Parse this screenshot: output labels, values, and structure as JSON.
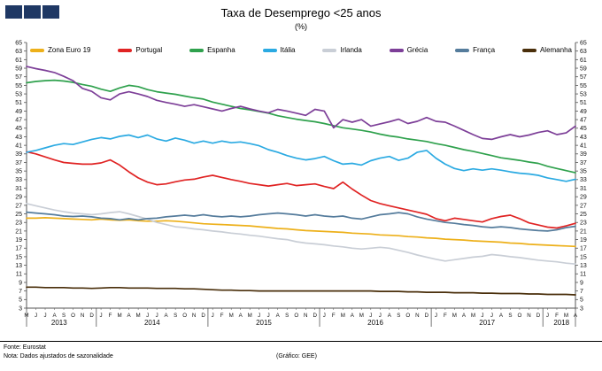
{
  "header": {
    "title": "Taxa de Desemprego <25 anos",
    "subtitle": "(%)"
  },
  "logo": {
    "color": "#1F3864",
    "squares": 3
  },
  "footer": {
    "source": "Fonte: Eurostat",
    "note": "Nota: Dados ajustados de sazonalidade",
    "credit": "(Gráfico: GEE)"
  },
  "chart_data": {
    "type": "line",
    "title": "Taxa de Desemprego <25 anos",
    "xlabel": "",
    "ylabel": "%",
    "ylim": [
      3,
      65
    ],
    "ytick_step": 2,
    "grid": false,
    "legend_position": "top",
    "x_labels": [
      "M",
      "J",
      "J",
      "A",
      "S",
      "O",
      "N",
      "D",
      "J",
      "F",
      "M",
      "A",
      "M",
      "J",
      "J",
      "A",
      "S",
      "O",
      "N",
      "D",
      "J",
      "F",
      "M",
      "A",
      "M",
      "J",
      "J",
      "A",
      "S",
      "O",
      "N",
      "D",
      "J",
      "F",
      "M",
      "A",
      "M",
      "J",
      "J",
      "A",
      "S",
      "O",
      "N",
      "D",
      "J",
      "F",
      "M",
      "A",
      "M",
      "J",
      "J",
      "A",
      "S",
      "O",
      "N",
      "D",
      "J",
      "F",
      "M",
      "A"
    ],
    "years": [
      {
        "label": "2013",
        "start": 0,
        "end": 7
      },
      {
        "label": "2014",
        "start": 8,
        "end": 19
      },
      {
        "label": "2015",
        "start": 20,
        "end": 31
      },
      {
        "label": "2016",
        "start": 32,
        "end": 43
      },
      {
        "label": "2017",
        "start": 44,
        "end": 55
      },
      {
        "label": "2018",
        "start": 56,
        "end": 59
      }
    ],
    "series": [
      {
        "name": "Zona Euro 19",
        "color": "#EDB01A",
        "values": [
          24.0,
          24.0,
          24.1,
          24.0,
          23.9,
          23.8,
          23.7,
          23.6,
          23.8,
          23.6,
          23.5,
          23.6,
          23.4,
          23.3,
          23.3,
          23.4,
          23.3,
          23.1,
          22.9,
          22.7,
          22.6,
          22.5,
          22.4,
          22.3,
          22.2,
          22.0,
          21.8,
          21.6,
          21.5,
          21.3,
          21.1,
          21.0,
          20.9,
          20.8,
          20.7,
          20.5,
          20.4,
          20.3,
          20.1,
          20.0,
          19.9,
          19.7,
          19.6,
          19.4,
          19.3,
          19.1,
          19.0,
          18.9,
          18.7,
          18.6,
          18.5,
          18.4,
          18.2,
          18.1,
          17.9,
          17.8,
          17.7,
          17.6,
          17.5,
          17.4
        ]
      },
      {
        "name": "Portugal",
        "color": "#E02424",
        "values": [
          39.5,
          39.0,
          38.3,
          37.6,
          37.0,
          36.8,
          36.6,
          36.6,
          36.9,
          37.6,
          36.4,
          34.8,
          33.4,
          32.4,
          31.8,
          32.0,
          32.5,
          32.9,
          33.1,
          33.6,
          34.0,
          33.5,
          33.0,
          32.6,
          32.1,
          31.8,
          31.5,
          31.8,
          32.1,
          31.6,
          31.8,
          32.0,
          31.4,
          30.9,
          32.4,
          30.8,
          29.4,
          28.1,
          27.4,
          26.9,
          26.4,
          25.9,
          25.4,
          24.9,
          23.9,
          23.4,
          24.0,
          23.7,
          23.4,
          23.1,
          23.9,
          24.4,
          24.7,
          23.9,
          22.9,
          22.4,
          21.9,
          21.7,
          22.2,
          22.8
        ]
      },
      {
        "name": "Espanha",
        "color": "#2FA14D",
        "values": [
          55.6,
          55.9,
          56.1,
          56.2,
          56.0,
          55.7,
          55.2,
          54.8,
          54.1,
          53.6,
          54.4,
          55.0,
          54.7,
          54.0,
          53.5,
          53.2,
          52.9,
          52.5,
          52.1,
          51.8,
          51.1,
          50.6,
          50.1,
          49.6,
          49.3,
          48.9,
          48.5,
          47.9,
          47.5,
          47.1,
          46.8,
          46.5,
          46.1,
          45.6,
          45.1,
          44.8,
          44.5,
          44.1,
          43.6,
          43.2,
          42.9,
          42.5,
          42.2,
          41.9,
          41.4,
          41.0,
          40.5,
          40.0,
          39.6,
          39.1,
          38.6,
          38.1,
          37.8,
          37.5,
          37.1,
          36.8,
          36.1,
          35.6,
          35.1,
          34.6
        ]
      },
      {
        "name": "Itália",
        "color": "#2BAAE2",
        "values": [
          39.4,
          39.8,
          40.4,
          41.0,
          41.4,
          41.2,
          41.8,
          42.4,
          42.8,
          42.5,
          43.1,
          43.4,
          42.8,
          43.4,
          42.5,
          42.0,
          42.7,
          42.2,
          41.5,
          42.0,
          41.5,
          42.0,
          41.6,
          41.8,
          41.4,
          40.9,
          40.0,
          39.4,
          38.6,
          38.0,
          37.6,
          37.9,
          38.4,
          37.4,
          36.6,
          36.8,
          36.4,
          37.4,
          38.0,
          38.4,
          37.5,
          38.0,
          39.4,
          39.8,
          38.0,
          36.6,
          35.6,
          35.1,
          35.5,
          35.2,
          35.5,
          35.2,
          34.8,
          34.5,
          34.3,
          34.0,
          33.4,
          33.0,
          32.6,
          33.1
        ]
      },
      {
        "name": "Irlanda",
        "color": "#C9CED6",
        "values": [
          27.4,
          26.9,
          26.4,
          25.9,
          25.5,
          25.2,
          25.0,
          24.8,
          25.0,
          25.3,
          25.5,
          25.0,
          24.4,
          23.8,
          23.0,
          22.5,
          22.0,
          21.8,
          21.5,
          21.3,
          21.0,
          20.8,
          20.5,
          20.3,
          20.0,
          19.8,
          19.5,
          19.2,
          19.0,
          18.5,
          18.2,
          18.0,
          17.8,
          17.5,
          17.3,
          17.0,
          16.8,
          17.0,
          17.2,
          17.0,
          16.5,
          16.0,
          15.4,
          14.9,
          14.4,
          14.0,
          14.3,
          14.6,
          14.9,
          15.1,
          15.5,
          15.3,
          15.0,
          14.8,
          14.5,
          14.2,
          14.0,
          13.8,
          13.5,
          13.3
        ]
      },
      {
        "name": "Grécia",
        "color": "#7D3F98",
        "values": [
          59.4,
          58.9,
          58.5,
          58.0,
          57.1,
          56.1,
          54.3,
          53.6,
          52.1,
          51.6,
          53.0,
          53.5,
          53.0,
          52.4,
          51.5,
          51.0,
          50.6,
          50.1,
          50.5,
          50.0,
          49.5,
          49.0,
          49.6,
          50.1,
          49.5,
          49.0,
          48.6,
          49.4,
          49.0,
          48.5,
          48.0,
          49.4,
          49.0,
          45.1,
          47.0,
          46.4,
          47.0,
          45.5,
          46.0,
          46.5,
          47.1,
          46.1,
          46.6,
          47.5,
          46.6,
          46.4,
          45.5,
          44.5,
          43.5,
          42.6,
          42.4,
          43.0,
          43.5,
          43.0,
          43.4,
          44.0,
          44.4,
          43.5,
          43.9,
          45.5
        ]
      },
      {
        "name": "França",
        "color": "#557C9C",
        "values": [
          25.4,
          25.2,
          25.0,
          24.8,
          24.5,
          24.4,
          24.5,
          24.3,
          24.0,
          23.9,
          23.6,
          23.9,
          23.6,
          23.9,
          24.0,
          24.3,
          24.5,
          24.7,
          24.5,
          24.8,
          24.5,
          24.3,
          24.5,
          24.3,
          24.5,
          24.8,
          25.0,
          25.2,
          25.0,
          24.8,
          24.5,
          24.8,
          24.5,
          24.3,
          24.5,
          24.0,
          23.8,
          24.3,
          24.8,
          25.0,
          25.3,
          25.0,
          24.3,
          23.8,
          23.4,
          23.0,
          22.8,
          22.5,
          22.3,
          22.0,
          21.8,
          22.0,
          21.8,
          21.5,
          21.3,
          21.1,
          21.0,
          21.3,
          21.8,
          22.1
        ]
      },
      {
        "name": "Alemanha",
        "color": "#4A2F0B",
        "values": [
          7.9,
          7.9,
          7.8,
          7.8,
          7.8,
          7.7,
          7.7,
          7.6,
          7.7,
          7.8,
          7.8,
          7.7,
          7.7,
          7.7,
          7.6,
          7.6,
          7.6,
          7.5,
          7.5,
          7.4,
          7.3,
          7.2,
          7.2,
          7.1,
          7.1,
          7.0,
          7.0,
          7.0,
          7.0,
          7.0,
          7.0,
          7.0,
          7.0,
          7.0,
          7.0,
          7.0,
          7.0,
          7.0,
          6.9,
          6.9,
          6.9,
          6.8,
          6.8,
          6.7,
          6.7,
          6.7,
          6.6,
          6.6,
          6.6,
          6.5,
          6.5,
          6.4,
          6.4,
          6.4,
          6.3,
          6.3,
          6.2,
          6.2,
          6.2,
          6.1
        ]
      }
    ]
  }
}
